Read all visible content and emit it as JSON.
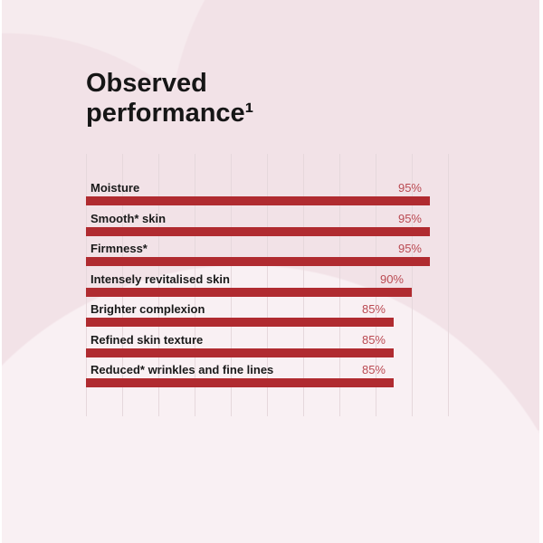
{
  "page": {
    "title_lines": [
      "Observed",
      "performance¹"
    ]
  },
  "chart_data": {
    "type": "bar",
    "orientation": "horizontal",
    "title": "Observed performance¹",
    "categories": [
      "Moisture",
      "Smooth* skin",
      "Firmness*",
      "Intensely revitalised skin",
      "Brighter complexion",
      "Refined skin texture",
      "Reduced* wrinkles and fine lines"
    ],
    "values": [
      95,
      95,
      95,
      90,
      85,
      85,
      85
    ],
    "value_labels": [
      "95%",
      "95%",
      "95%",
      "90%",
      "85%",
      "85%",
      "85%"
    ],
    "xlim": [
      0,
      100
    ],
    "gridline_interval_pct": 10,
    "grid": true,
    "legend": false,
    "colors": {
      "bar": "#b02b30",
      "value_label": "#ba4a52",
      "category_label": "#1a1a1a",
      "title": "#161616",
      "background": "#f6ebee",
      "background_circle_dark": "#f2e2e7",
      "background_circle_light": "#f9f0f3",
      "gridline": "#e6d8dc"
    }
  }
}
